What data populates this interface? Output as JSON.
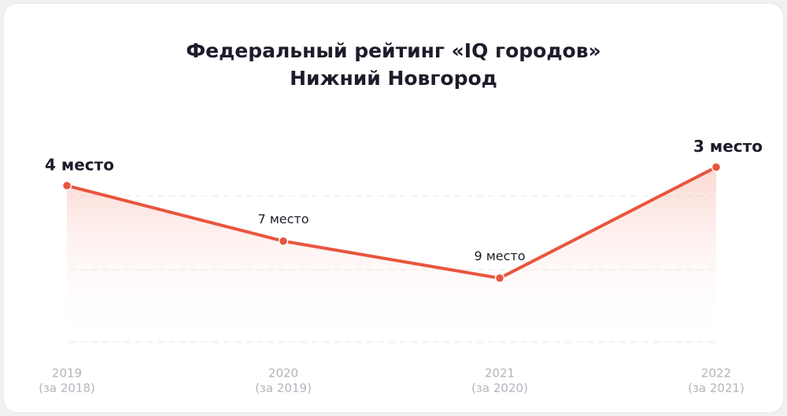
{
  "chart_data": {
    "type": "line",
    "title": "Федеральный рейтинг «IQ городов»",
    "subtitle": "Нижний Новгород",
    "categories": [
      [
        "2019",
        "(за 2018)"
      ],
      [
        "2020",
        "(за 2019)"
      ],
      [
        "2021",
        "(за 2020)"
      ],
      [
        "2022",
        "(за 2021)"
      ]
    ],
    "series": [
      {
        "color": "#e8553e",
        "values": [
          4,
          7,
          9,
          3
        ],
        "value_labels": [
          "4 место",
          "7 место",
          "9 место",
          "3 место"
        ]
      }
    ],
    "ylim": [
      12.5,
      2
    ],
    "inverted_y": true,
    "grid": true
  }
}
